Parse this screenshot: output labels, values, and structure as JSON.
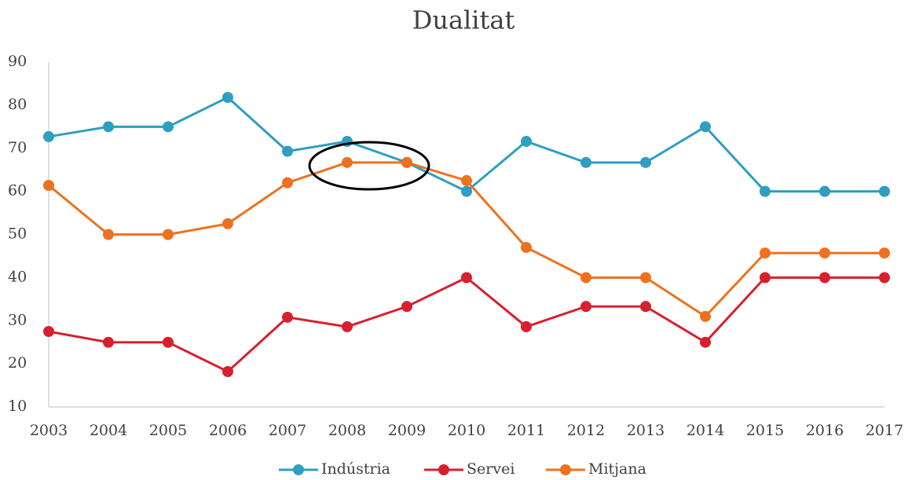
{
  "chart_data": {
    "type": "line",
    "title": "Dualitat",
    "categories": [
      "2003",
      "2004",
      "2005",
      "2006",
      "2007",
      "2008",
      "2009",
      "2010",
      "2011",
      "2012",
      "2013",
      "2014",
      "2015",
      "2016",
      "2017"
    ],
    "series": [
      {
        "name": "Indústria",
        "color": "#2e9fc0",
        "values": [
          72.7,
          75,
          75,
          81.8,
          69.3,
          71.6,
          66.7,
          60,
          71.6,
          66.7,
          66.7,
          75,
          60,
          60,
          60
        ]
      },
      {
        "name": "Servei",
        "color": "#d7202e",
        "values": [
          27.5,
          25,
          25,
          18.2,
          30.8,
          28.6,
          33.3,
          40,
          28.6,
          33.3,
          33.3,
          25,
          40,
          40,
          40
        ]
      },
      {
        "name": "Mitjana",
        "color": "#ee7120",
        "values": [
          61.4,
          50,
          50,
          52.5,
          62,
          66.7,
          66.7,
          62.5,
          47,
          40,
          40,
          31,
          45.7,
          45.7,
          45.7
        ]
      }
    ],
    "ylim": [
      10,
      90
    ],
    "yticks": [
      10,
      20,
      30,
      40,
      50,
      60,
      70,
      80,
      90
    ],
    "grid": false,
    "legend": "bottom"
  }
}
